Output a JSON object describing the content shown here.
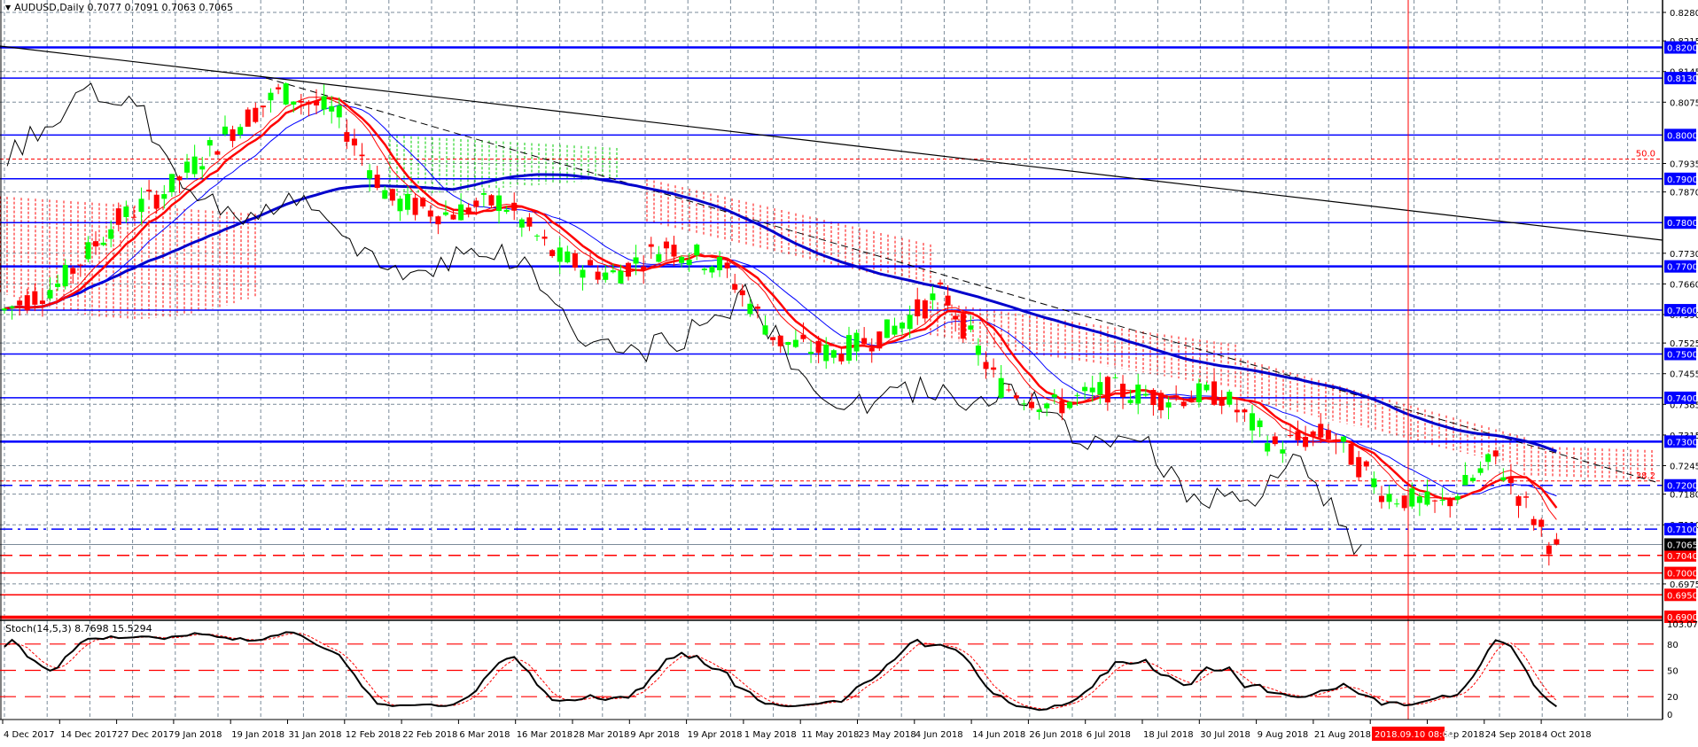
{
  "header": {
    "menu_icon": "triangle-down-icon",
    "symbol": "AUDUSD",
    "timeframe": "Daily",
    "ohlc_text": "0.7077 0.7091 0.7063 0.7065",
    "title_text": "AUDUSD,Daily  0.7077 0.7091 0.7063 0.7065"
  },
  "stochastic": {
    "title_text": "Stoch(14,5,3) 8.7698 15.5294",
    "params": "14,5,3",
    "main_value": "8.7698",
    "signal_value": "15.5294",
    "axis_labels": [
      "103.0734",
      "80",
      "50",
      "20",
      "0"
    ],
    "levels": [
      80,
      50,
      20
    ]
  },
  "price_axis": {
    "tick_labels": [
      "0.8280",
      "0.8215",
      "0.8145",
      "0.8075",
      "0.7935",
      "0.7870",
      "0.7730",
      "0.7660",
      "0.7590",
      "0.7525",
      "0.7455",
      "0.7385",
      "0.7315",
      "0.7245",
      "0.7180",
      "0.7110",
      "0.6975"
    ],
    "horizontal_lines": [
      {
        "label": "0.8200",
        "color": "#0000ff",
        "style": "solid-thick"
      },
      {
        "label": "0.8130",
        "color": "#0000ff",
        "style": "solid"
      },
      {
        "label": "0.8000",
        "color": "#0000ff",
        "style": "solid"
      },
      {
        "label": "0.7900",
        "color": "#0000ff",
        "style": "solid"
      },
      {
        "label": "0.7800",
        "color": "#0000ff",
        "style": "solid"
      },
      {
        "label": "0.7700",
        "color": "#0000ff",
        "style": "solid-thick"
      },
      {
        "label": "0.7600",
        "color": "#0000ff",
        "style": "solid"
      },
      {
        "label": "0.7500",
        "color": "#0000ff",
        "style": "solid"
      },
      {
        "label": "0.7400",
        "color": "#0000ff",
        "style": "solid"
      },
      {
        "label": "0.7300",
        "color": "#0000ff",
        "style": "solid-thick"
      },
      {
        "label": "0.7200",
        "color": "#0000ff",
        "style": "dashed"
      },
      {
        "label": "0.7100",
        "color": "#0000ff",
        "style": "dash-dot"
      },
      {
        "label": "0.7040",
        "color": "#ff0000",
        "style": "dashed"
      },
      {
        "label": "0.7000",
        "color": "#ff0000",
        "style": "solid"
      },
      {
        "label": "0.6950",
        "color": "#ff0000",
        "style": "solid"
      },
      {
        "label": "0.6900",
        "color": "#ff0000",
        "style": "solid-thick"
      }
    ],
    "current_price_label": "0.7065",
    "current_price_bg": "#000000",
    "fibo_labels": [
      {
        "text": "50.0",
        "price": 0.7945
      },
      {
        "text": "38.2",
        "price": 0.721
      }
    ]
  },
  "time_axis": {
    "labels": [
      "4 Dec 2017",
      "14 Dec 2017",
      "27 Dec 2017",
      "9 Jan 2018",
      "19 Jan 2018",
      "31 Jan 2018",
      "12 Feb 2018",
      "22 Feb 2018",
      "6 Mar 2018",
      "16 Mar 2018",
      "28 Mar 2018",
      "9 Apr 2018",
      "19 Apr 2018",
      "1 May 2018",
      "11 May 2018",
      "23 May 2018",
      "4 Jun 2018",
      "14 Jun 2018",
      "26 Jun 2018",
      "6 Jul 2018",
      "18 Jul 2018",
      "30 Jul 2018",
      "9 Aug 2018",
      "21 Aug 2018",
      "31 Aug 2018",
      "12 Sep 2018",
      "24 Sep 2018",
      "4 Oct 2018"
    ],
    "crosshair_label": "2018.09.10 08:00"
  },
  "colors": {
    "bull_candle": "#00ff00",
    "bear_candle": "#ff0000",
    "level_blue": "#0000ff",
    "level_red": "#ff0000",
    "grid": "#7a8a99",
    "ma_fast": "#ff0000",
    "ma_slow": "#0000cc",
    "chikou": "#000000"
  },
  "chart_data": {
    "type": "candlestick",
    "title": "AUDUSD, Daily",
    "ylim": [
      0.69,
      0.828
    ],
    "x_range": [
      "4 Dec 2017",
      "9 Oct 2018"
    ],
    "indicators": [
      "Ichimoku cloud (red/green dotted)",
      "Moving averages (red thick, red thin, blue thin, blue thick)",
      "Chikou span (black)",
      "Trendlines (black solid & dashed)",
      "Stochastic(14,5,3)"
    ],
    "close_path": [
      {
        "date": "4 Dec 2017",
        "close": 0.76
      },
      {
        "date": "14 Dec 2017",
        "close": 0.766
      },
      {
        "date": "27 Dec 2017",
        "close": 0.78
      },
      {
        "date": "9 Jan 2018",
        "close": 0.788
      },
      {
        "date": "19 Jan 2018",
        "close": 0.8
      },
      {
        "date": "26 Jan 2018",
        "close": 0.81
      },
      {
        "date": "31 Jan 2018",
        "close": 0.805
      },
      {
        "date": "12 Feb 2018",
        "close": 0.785
      },
      {
        "date": "22 Feb 2018",
        "close": 0.782
      },
      {
        "date": "6 Mar 2018",
        "close": 0.785
      },
      {
        "date": "16 Mar 2018",
        "close": 0.772
      },
      {
        "date": "28 Mar 2018",
        "close": 0.768
      },
      {
        "date": "9 Apr 2018",
        "close": 0.775
      },
      {
        "date": "19 Apr 2018",
        "close": 0.77
      },
      {
        "date": "1 May 2018",
        "close": 0.753
      },
      {
        "date": "11 May 2018",
        "close": 0.75
      },
      {
        "date": "23 May 2018",
        "close": 0.755
      },
      {
        "date": "4 Jun 2018",
        "close": 0.764
      },
      {
        "date": "14 Jun 2018",
        "close": 0.743
      },
      {
        "date": "26 Jun 2018",
        "close": 0.738
      },
      {
        "date": "6 Jul 2018",
        "close": 0.742
      },
      {
        "date": "18 Jul 2018",
        "close": 0.74
      },
      {
        "date": "30 Jul 2018",
        "close": 0.741
      },
      {
        "date": "9 Aug 2018",
        "close": 0.729
      },
      {
        "date": "21 Aug 2018",
        "close": 0.732
      },
      {
        "date": "31 Aug 2018",
        "close": 0.718
      },
      {
        "date": "12 Sep 2018",
        "close": 0.715
      },
      {
        "date": "24 Sep 2018",
        "close": 0.726
      },
      {
        "date": "4 Oct 2018",
        "close": 0.7065
      }
    ],
    "last_bar": {
      "open": 0.7077,
      "high": 0.7091,
      "low": 0.7063,
      "close": 0.7065
    },
    "stochastic": {
      "k": 8.7698,
      "d": 15.5294,
      "levels": [
        20,
        50,
        80
      ],
      "ylim": [
        0,
        103.0734
      ]
    }
  }
}
